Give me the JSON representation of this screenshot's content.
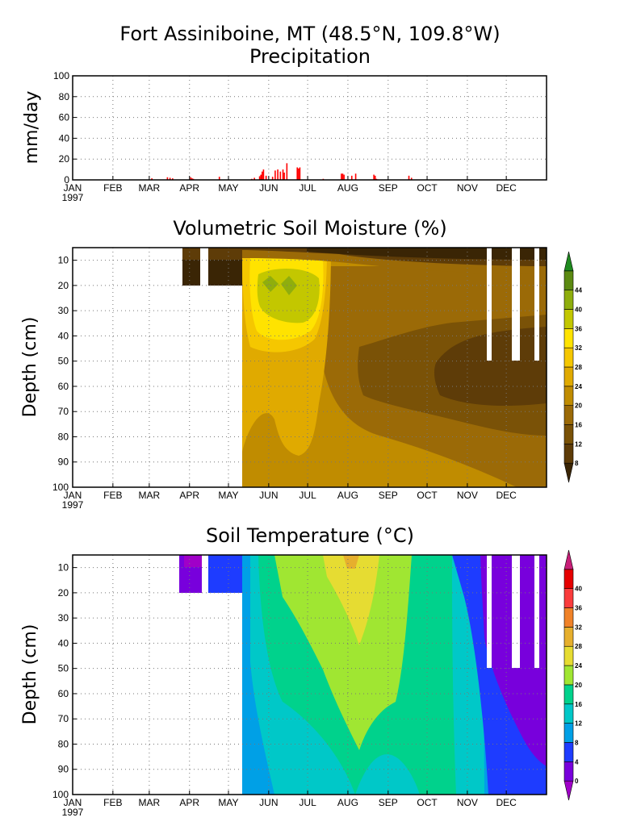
{
  "header": {
    "title_line1": "Fort Assiniboine, MT (48.5°N, 109.8°W)",
    "title_line2": "Precipitation"
  },
  "chart_data": [
    {
      "type": "bar",
      "title": "Precipitation",
      "ylabel": "mm/day",
      "xlabel": "",
      "ylim": [
        0,
        100
      ],
      "yticks": [
        0,
        20,
        40,
        60,
        80,
        100
      ],
      "xticks": [
        "JAN",
        "FEB",
        "MAR",
        "APR",
        "MAY",
        "JUN",
        "JUL",
        "AUG",
        "SEP",
        "OCT",
        "NOV",
        "DEC"
      ],
      "year_label": "1997",
      "bar_color": "#ff0000",
      "grid": true,
      "x_units": "day_of_year",
      "x": [
        62,
        74,
        76,
        78,
        92,
        93,
        94,
        114,
        139,
        141,
        145,
        146,
        147,
        148,
        150,
        155,
        157,
        159,
        161,
        163,
        164,
        166,
        174,
        175,
        176,
        194,
        208,
        209,
        210,
        216,
        219,
        233,
        234,
        235,
        236,
        260,
        262
      ],
      "values": [
        1.5,
        2.5,
        2,
        1.5,
        2.5,
        1.5,
        1,
        3,
        1,
        2,
        3.5,
        5,
        8,
        10,
        4,
        3,
        9,
        10,
        8,
        10,
        7,
        16,
        12,
        11,
        12,
        1,
        6,
        6,
        5,
        4,
        6,
        5,
        4,
        1,
        0.5,
        4,
        2
      ]
    },
    {
      "type": "heatmap",
      "title": "Volumetric Soil Moisture (%)",
      "ylabel": "Depth (cm)",
      "xticks": [
        "JAN",
        "FEB",
        "MAR",
        "APR",
        "MAY",
        "JUN",
        "JUL",
        "AUG",
        "SEP",
        "OCT",
        "NOV",
        "DEC"
      ],
      "year_label": "1997",
      "yticks": [
        10,
        20,
        30,
        40,
        50,
        60,
        70,
        80,
        90,
        100
      ],
      "ylim": [
        100,
        5
      ],
      "colorbar_ticks": [
        "8",
        "12",
        "16",
        "20",
        "24",
        "28",
        "32",
        "36",
        "40",
        "44"
      ],
      "colorbar_colors": [
        "#3a2505",
        "#5e3c08",
        "#7a5207",
        "#9b6a07",
        "#c08c00",
        "#e0aa00",
        "#f5c700",
        "#ffe300",
        "#c3c700",
        "#8fae0d",
        "#5c8a12",
        "#1f8a1f"
      ]
    },
    {
      "type": "heatmap",
      "title": "Soil Temperature (°C)",
      "ylabel": "Depth (cm)",
      "xticks": [
        "JAN",
        "FEB",
        "MAR",
        "APR",
        "MAY",
        "JUN",
        "JUL",
        "AUG",
        "SEP",
        "OCT",
        "NOV",
        "DEC"
      ],
      "year_label": "1997",
      "yticks": [
        10,
        20,
        30,
        40,
        50,
        60,
        70,
        80,
        90,
        100
      ],
      "ylim": [
        100,
        5
      ],
      "colorbar_ticks": [
        "0",
        "4",
        "8",
        "12",
        "16",
        "20",
        "24",
        "28",
        "32",
        "36",
        "40"
      ],
      "colorbar_colors": [
        "#a000c8",
        "#7800dc",
        "#1e3cff",
        "#00a0e6",
        "#00c8c8",
        "#00d28c",
        "#a0e632",
        "#e6dc32",
        "#e6af2d",
        "#f08228",
        "#fa3c3c",
        "#e60000",
        "#c81e78"
      ]
    }
  ]
}
